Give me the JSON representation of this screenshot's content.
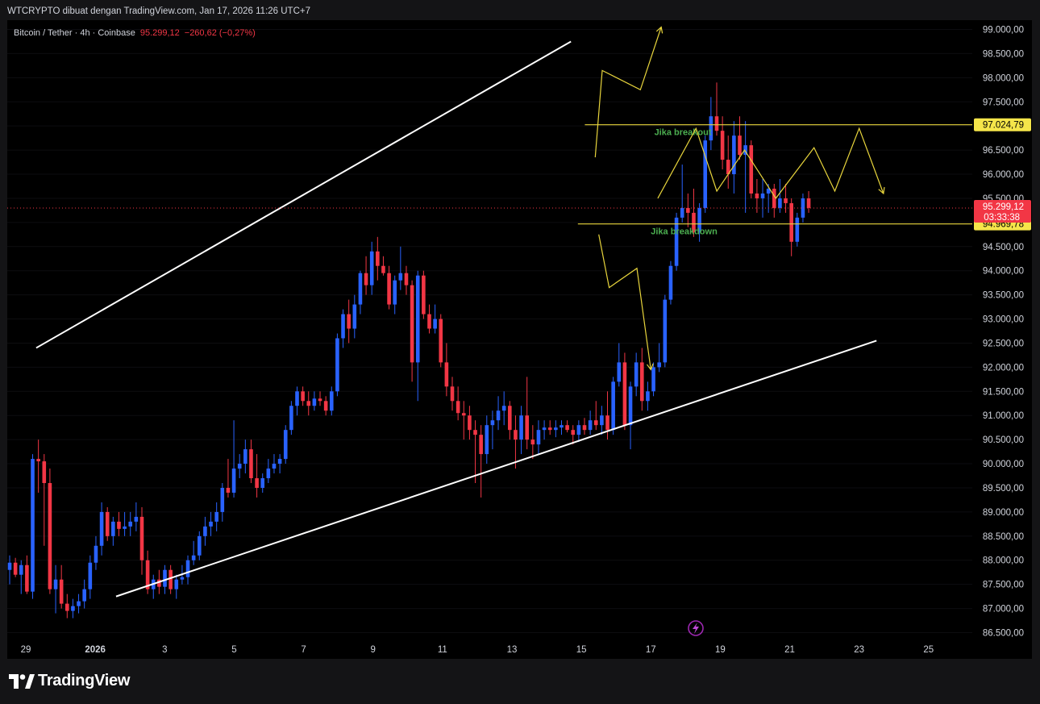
{
  "header": {
    "attribution": "WTCRYPTO dibuat dengan TradingView.com, Jan 17, 2026 11:26 UTC+7"
  },
  "legend": {
    "symbol": "Bitcoin / Tether · 4h · Coinbase",
    "price": "95.299,12",
    "change": "−260,62 (−0,27%)"
  },
  "footer": {
    "brand": "TradingView"
  },
  "colors": {
    "up": "#2962ff",
    "down": "#f23645",
    "channel": "#ffffff",
    "levels": "#e8d53c",
    "annotation_text": "#4caf50",
    "level_label_bg": "#f5e54a",
    "price_label_bg": "#f23645"
  },
  "chart_data": {
    "type": "candlestick",
    "symbol": "Bitcoin / Tether",
    "interval": "4h",
    "exchange": "Coinbase",
    "last_price": 95299.12,
    "countdown": "03:33:38",
    "ylim": [
      86300,
      99200
    ],
    "y_ticks": [
      86500,
      87000,
      87500,
      88000,
      88500,
      89000,
      89500,
      90000,
      90500,
      91000,
      91500,
      92000,
      92500,
      93000,
      93500,
      94000,
      94500,
      95000,
      95500,
      96000,
      96500,
      97000,
      97500,
      98000,
      98500,
      99000
    ],
    "y_tick_labels": [
      "86.500,00",
      "87.000,00",
      "87.500,00",
      "88.000,00",
      "88.500,00",
      "89.000,00",
      "89.500,00",
      "90.000,00",
      "90.500,00",
      "91.000,00",
      "91.500,00",
      "92.000,00",
      "92.500,00",
      "93.000,00",
      "93.500,00",
      "94.000,00",
      "94.500,00",
      "95.000,00",
      "95.500,00",
      "96.000,00",
      "96.500,00",
      "97.000,00",
      "97.500,00",
      "98.000,00",
      "98.500,00",
      "99.000,00"
    ],
    "x_ticks": [
      {
        "day": -1,
        "label": "29"
      },
      {
        "day": 1,
        "label": "2026"
      },
      {
        "day": 3,
        "label": "3"
      },
      {
        "day": 5,
        "label": "5"
      },
      {
        "day": 7,
        "label": "7"
      },
      {
        "day": 9,
        "label": "9"
      },
      {
        "day": 11,
        "label": "11"
      },
      {
        "day": 13,
        "label": "13"
      },
      {
        "day": 15,
        "label": "15"
      },
      {
        "day": 17,
        "label": "17"
      },
      {
        "day": 19,
        "label": "19"
      },
      {
        "day": 21,
        "label": "21"
      },
      {
        "day": 23,
        "label": "23"
      },
      {
        "day": 25,
        "label": "25"
      }
    ],
    "levels": [
      {
        "name": "Jika breakout",
        "value": 97024.79,
        "label": "97.024,79"
      },
      {
        "name": "Jika breakdown",
        "value": 94969.78,
        "label": "94.969,78"
      }
    ],
    "last_price_label": "95.299,12",
    "channel": {
      "upper": [
        [
          -0.7,
          92400
        ],
        [
          14.7,
          98750
        ]
      ],
      "lower": [
        [
          1.6,
          87250
        ],
        [
          23.5,
          92550
        ]
      ]
    },
    "scenario_breakout_up": [
      [
        15.4,
        96350
      ],
      [
        15.6,
        98150
      ],
      [
        16.7,
        97750
      ],
      [
        17.3,
        99050
      ]
    ],
    "scenario_range": [
      [
        17.2,
        95500
      ],
      [
        18.3,
        96950
      ],
      [
        18.9,
        95650
      ],
      [
        19.7,
        96500
      ],
      [
        20.6,
        95500
      ],
      [
        21.7,
        96550
      ],
      [
        22.3,
        95650
      ],
      [
        23.0,
        96950
      ],
      [
        23.7,
        95600
      ]
    ],
    "scenario_breakdown": [
      [
        15.5,
        94750
      ],
      [
        15.8,
        93650
      ],
      [
        16.6,
        94050
      ],
      [
        17.0,
        91950
      ]
    ],
    "candles": [
      {
        "o": 87800,
        "h": 88100,
        "l": 87500,
        "c": 87950
      },
      {
        "o": 87950,
        "h": 88050,
        "l": 87650,
        "c": 87700
      },
      {
        "o": 87700,
        "h": 88000,
        "l": 87300,
        "c": 87900
      },
      {
        "o": 87900,
        "h": 88100,
        "l": 87300,
        "c": 87350
      },
      {
        "o": 87350,
        "h": 90200,
        "l": 87200,
        "c": 90100
      },
      {
        "o": 90100,
        "h": 90500,
        "l": 89400,
        "c": 90050
      },
      {
        "o": 90050,
        "h": 90200,
        "l": 88300,
        "c": 89600
      },
      {
        "o": 89600,
        "h": 89900,
        "l": 87300,
        "c": 87400
      },
      {
        "o": 87400,
        "h": 87900,
        "l": 86900,
        "c": 87600
      },
      {
        "o": 87600,
        "h": 87900,
        "l": 87000,
        "c": 87100
      },
      {
        "o": 87100,
        "h": 87300,
        "l": 86800,
        "c": 86950
      },
      {
        "o": 86950,
        "h": 87200,
        "l": 86800,
        "c": 87050
      },
      {
        "o": 87050,
        "h": 87300,
        "l": 86900,
        "c": 87150
      },
      {
        "o": 87150,
        "h": 87600,
        "l": 87000,
        "c": 87400
      },
      {
        "o": 87400,
        "h": 88100,
        "l": 87200,
        "c": 87950
      },
      {
        "o": 87950,
        "h": 88500,
        "l": 87800,
        "c": 88300
      },
      {
        "o": 88300,
        "h": 89200,
        "l": 88100,
        "c": 89000
      },
      {
        "o": 89000,
        "h": 89100,
        "l": 88400,
        "c": 88500
      },
      {
        "o": 88500,
        "h": 88900,
        "l": 88300,
        "c": 88800
      },
      {
        "o": 88800,
        "h": 89000,
        "l": 88500,
        "c": 88650
      },
      {
        "o": 88650,
        "h": 89000,
        "l": 88500,
        "c": 88700
      },
      {
        "o": 88700,
        "h": 89000,
        "l": 88500,
        "c": 88800
      },
      {
        "o": 88800,
        "h": 89200,
        "l": 88600,
        "c": 88900
      },
      {
        "o": 88900,
        "h": 89100,
        "l": 87700,
        "c": 88000
      },
      {
        "o": 88000,
        "h": 88200,
        "l": 87300,
        "c": 87400
      },
      {
        "o": 87400,
        "h": 87700,
        "l": 87200,
        "c": 87600
      },
      {
        "o": 87600,
        "h": 87800,
        "l": 87300,
        "c": 87450
      },
      {
        "o": 87450,
        "h": 87900,
        "l": 87300,
        "c": 87800
      },
      {
        "o": 87800,
        "h": 87900,
        "l": 87300,
        "c": 87400
      },
      {
        "o": 87400,
        "h": 87700,
        "l": 87200,
        "c": 87600
      },
      {
        "o": 87600,
        "h": 87900,
        "l": 87500,
        "c": 87650
      },
      {
        "o": 87650,
        "h": 88100,
        "l": 87500,
        "c": 88000
      },
      {
        "o": 88000,
        "h": 88400,
        "l": 87900,
        "c": 88100
      },
      {
        "o": 88100,
        "h": 88600,
        "l": 88000,
        "c": 88500
      },
      {
        "o": 88500,
        "h": 88900,
        "l": 88300,
        "c": 88700
      },
      {
        "o": 88700,
        "h": 89000,
        "l": 88500,
        "c": 88800
      },
      {
        "o": 88800,
        "h": 89200,
        "l": 88600,
        "c": 89000
      },
      {
        "o": 89000,
        "h": 89600,
        "l": 88800,
        "c": 89500
      },
      {
        "o": 89500,
        "h": 90100,
        "l": 89300,
        "c": 89400
      },
      {
        "o": 89400,
        "h": 90900,
        "l": 89300,
        "c": 89900
      },
      {
        "o": 89900,
        "h": 90200,
        "l": 89700,
        "c": 90000
      },
      {
        "o": 90000,
        "h": 90500,
        "l": 89800,
        "c": 90300
      },
      {
        "o": 90300,
        "h": 90500,
        "l": 89600,
        "c": 89700
      },
      {
        "o": 89700,
        "h": 90200,
        "l": 89300,
        "c": 89500
      },
      {
        "o": 89500,
        "h": 89800,
        "l": 89400,
        "c": 89700
      },
      {
        "o": 89700,
        "h": 90100,
        "l": 89600,
        "c": 89900
      },
      {
        "o": 89900,
        "h": 90200,
        "l": 89800,
        "c": 90000
      },
      {
        "o": 90000,
        "h": 90200,
        "l": 89800,
        "c": 90100
      },
      {
        "o": 90100,
        "h": 90800,
        "l": 90000,
        "c": 90700
      },
      {
        "o": 90700,
        "h": 91300,
        "l": 90600,
        "c": 91200
      },
      {
        "o": 91200,
        "h": 91600,
        "l": 91000,
        "c": 91500
      },
      {
        "o": 91500,
        "h": 91600,
        "l": 91200,
        "c": 91300
      },
      {
        "o": 91300,
        "h": 91500,
        "l": 91000,
        "c": 91200
      },
      {
        "o": 91200,
        "h": 91500,
        "l": 91100,
        "c": 91350
      },
      {
        "o": 91350,
        "h": 91500,
        "l": 91200,
        "c": 91300
      },
      {
        "o": 91300,
        "h": 91400,
        "l": 91000,
        "c": 91100
      },
      {
        "o": 91100,
        "h": 91600,
        "l": 91000,
        "c": 91500
      },
      {
        "o": 91500,
        "h": 92700,
        "l": 91400,
        "c": 92600
      },
      {
        "o": 92600,
        "h": 93200,
        "l": 92400,
        "c": 93100
      },
      {
        "o": 93100,
        "h": 93400,
        "l": 92500,
        "c": 92800
      },
      {
        "o": 92800,
        "h": 93500,
        "l": 92600,
        "c": 93300
      },
      {
        "o": 93300,
        "h": 94000,
        "l": 93100,
        "c": 93950
      },
      {
        "o": 93950,
        "h": 94300,
        "l": 93500,
        "c": 93700
      },
      {
        "o": 93700,
        "h": 94600,
        "l": 93500,
        "c": 94400
      },
      {
        "o": 94400,
        "h": 94700,
        "l": 93800,
        "c": 94100
      },
      {
        "o": 94100,
        "h": 94300,
        "l": 93900,
        "c": 93950
      },
      {
        "o": 93950,
        "h": 94100,
        "l": 93200,
        "c": 93300
      },
      {
        "o": 93300,
        "h": 93900,
        "l": 93100,
        "c": 93800
      },
      {
        "o": 93800,
        "h": 94500,
        "l": 93600,
        "c": 93950
      },
      {
        "o": 93950,
        "h": 94100,
        "l": 93500,
        "c": 93700
      },
      {
        "o": 93700,
        "h": 93800,
        "l": 91700,
        "c": 92100
      },
      {
        "o": 92100,
        "h": 94000,
        "l": 91300,
        "c": 93900
      },
      {
        "o": 93900,
        "h": 94000,
        "l": 93000,
        "c": 93100
      },
      {
        "o": 93100,
        "h": 93300,
        "l": 92700,
        "c": 92800
      },
      {
        "o": 92800,
        "h": 93300,
        "l": 92700,
        "c": 93000
      },
      {
        "o": 93000,
        "h": 93100,
        "l": 92000,
        "c": 92100
      },
      {
        "o": 92100,
        "h": 92500,
        "l": 91400,
        "c": 91600
      },
      {
        "o": 91600,
        "h": 91800,
        "l": 91100,
        "c": 91300
      },
      {
        "o": 91300,
        "h": 91600,
        "l": 90900,
        "c": 91050
      },
      {
        "o": 91050,
        "h": 91300,
        "l": 90500,
        "c": 91000
      },
      {
        "o": 91000,
        "h": 91200,
        "l": 90500,
        "c": 90700
      },
      {
        "o": 90700,
        "h": 90900,
        "l": 89600,
        "c": 90600
      },
      {
        "o": 90600,
        "h": 90800,
        "l": 89300,
        "c": 90200
      },
      {
        "o": 90200,
        "h": 91000,
        "l": 90000,
        "c": 90800
      },
      {
        "o": 90800,
        "h": 91100,
        "l": 90300,
        "c": 90900
      },
      {
        "o": 90900,
        "h": 91400,
        "l": 90700,
        "c": 91100
      },
      {
        "o": 91100,
        "h": 91500,
        "l": 90800,
        "c": 91200
      },
      {
        "o": 91200,
        "h": 91300,
        "l": 90500,
        "c": 90700
      },
      {
        "o": 90700,
        "h": 91000,
        "l": 89900,
        "c": 90500
      },
      {
        "o": 90500,
        "h": 91200,
        "l": 90200,
        "c": 91000
      },
      {
        "o": 91000,
        "h": 91800,
        "l": 90300,
        "c": 90500
      },
      {
        "o": 90500,
        "h": 90800,
        "l": 90100,
        "c": 90400
      },
      {
        "o": 90400,
        "h": 90900,
        "l": 90200,
        "c": 90700
      },
      {
        "o": 90700,
        "h": 90900,
        "l": 90500,
        "c": 90750
      },
      {
        "o": 90750,
        "h": 90900,
        "l": 90600,
        "c": 90700
      },
      {
        "o": 90700,
        "h": 90900,
        "l": 90550,
        "c": 90750
      },
      {
        "o": 90750,
        "h": 90900,
        "l": 90600,
        "c": 90800
      },
      {
        "o": 90800,
        "h": 90900,
        "l": 90650,
        "c": 90700
      },
      {
        "o": 90700,
        "h": 90800,
        "l": 90400,
        "c": 90600
      },
      {
        "o": 90600,
        "h": 90900,
        "l": 90450,
        "c": 90800
      },
      {
        "o": 90800,
        "h": 90950,
        "l": 90600,
        "c": 90700
      },
      {
        "o": 90700,
        "h": 91100,
        "l": 90600,
        "c": 90900
      },
      {
        "o": 90900,
        "h": 91300,
        "l": 90700,
        "c": 90800
      },
      {
        "o": 90800,
        "h": 91200,
        "l": 90600,
        "c": 91000
      },
      {
        "o": 91000,
        "h": 91500,
        "l": 90500,
        "c": 90700
      },
      {
        "o": 90700,
        "h": 91800,
        "l": 90600,
        "c": 91700
      },
      {
        "o": 91700,
        "h": 92500,
        "l": 91600,
        "c": 92100
      },
      {
        "o": 92100,
        "h": 92300,
        "l": 90700,
        "c": 90800
      },
      {
        "o": 90800,
        "h": 91700,
        "l": 90300,
        "c": 91600
      },
      {
        "o": 91600,
        "h": 92300,
        "l": 91400,
        "c": 92100
      },
      {
        "o": 92100,
        "h": 92400,
        "l": 91100,
        "c": 91300
      },
      {
        "o": 91300,
        "h": 91700,
        "l": 91100,
        "c": 91500
      },
      {
        "o": 91500,
        "h": 92100,
        "l": 91400,
        "c": 92000
      },
      {
        "o": 92000,
        "h": 92500,
        "l": 91900,
        "c": 92100
      },
      {
        "o": 92100,
        "h": 93500,
        "l": 92000,
        "c": 93400
      },
      {
        "o": 93400,
        "h": 94200,
        "l": 93300,
        "c": 94100
      },
      {
        "o": 94100,
        "h": 95200,
        "l": 94000,
        "c": 95100
      },
      {
        "o": 95100,
        "h": 96200,
        "l": 95000,
        "c": 95300
      },
      {
        "o": 95300,
        "h": 95600,
        "l": 94900,
        "c": 95200
      },
      {
        "o": 95200,
        "h": 95700,
        "l": 94700,
        "c": 94800
      },
      {
        "o": 94800,
        "h": 95400,
        "l": 94600,
        "c": 95300
      },
      {
        "o": 95300,
        "h": 96800,
        "l": 95200,
        "c": 96700
      },
      {
        "o": 96700,
        "h": 97600,
        "l": 96500,
        "c": 97200
      },
      {
        "o": 97200,
        "h": 97900,
        "l": 96800,
        "c": 96900
      },
      {
        "o": 96900,
        "h": 97200,
        "l": 96100,
        "c": 96300
      },
      {
        "o": 96300,
        "h": 96800,
        "l": 95700,
        "c": 96000
      },
      {
        "o": 96000,
        "h": 97100,
        "l": 95600,
        "c": 96800
      },
      {
        "o": 96800,
        "h": 97200,
        "l": 96300,
        "c": 96400
      },
      {
        "o": 96400,
        "h": 97100,
        "l": 95200,
        "c": 96600
      },
      {
        "o": 96600,
        "h": 96700,
        "l": 95500,
        "c": 95600
      },
      {
        "o": 95600,
        "h": 95900,
        "l": 95200,
        "c": 95500
      },
      {
        "o": 95500,
        "h": 95900,
        "l": 95100,
        "c": 95600
      },
      {
        "o": 95600,
        "h": 95800,
        "l": 95200,
        "c": 95700
      },
      {
        "o": 95700,
        "h": 95800,
        "l": 95100,
        "c": 95300
      },
      {
        "o": 95300,
        "h": 95900,
        "l": 95200,
        "c": 95500
      },
      {
        "o": 95500,
        "h": 95800,
        "l": 95200,
        "c": 95400
      },
      {
        "o": 95400,
        "h": 95500,
        "l": 94300,
        "c": 94600
      },
      {
        "o": 94600,
        "h": 95200,
        "l": 94500,
        "c": 95100
      },
      {
        "o": 95100,
        "h": 95600,
        "l": 95000,
        "c": 95500
      },
      {
        "o": 95500,
        "h": 95650,
        "l": 95200,
        "c": 95300
      }
    ]
  }
}
